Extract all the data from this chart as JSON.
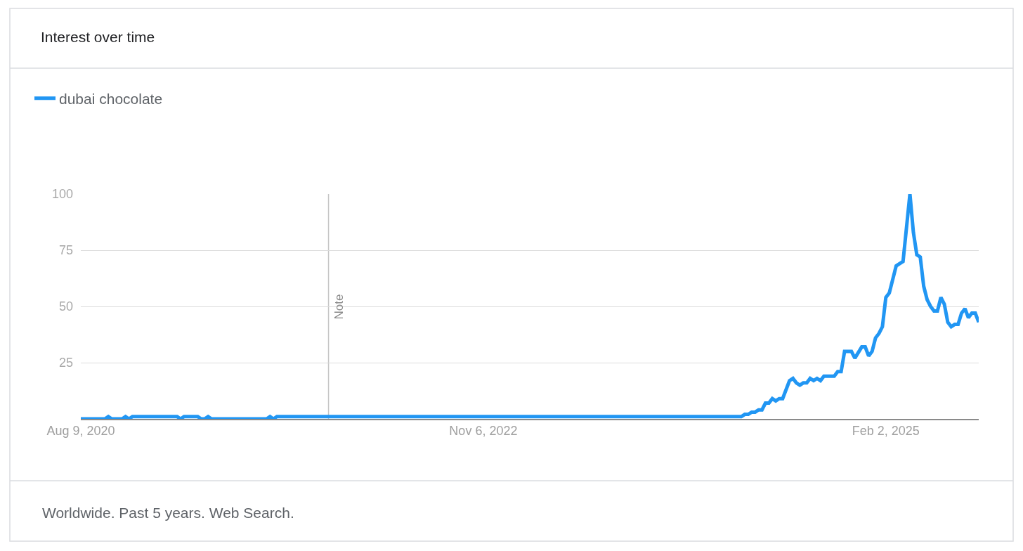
{
  "chart_data": {
    "type": "line",
    "title": "Interest over time",
    "annotations": [
      "Worldwide. Past 5 years. Web Search."
    ],
    "series": [
      {
        "name": "dubai chocolate",
        "color": "#2196f3",
        "x": [
          "2020-08-09",
          "2020-09-27",
          "2020-10-04",
          "2020-10-11",
          "2020-11-01",
          "2020-11-08",
          "2020-11-15",
          "2020-11-22",
          "2021-02-21",
          "2021-02-28",
          "2021-03-07",
          "2021-04-04",
          "2021-04-11",
          "2021-04-18",
          "2021-04-25",
          "2021-05-02",
          "2021-08-22",
          "2021-08-29",
          "2021-09-05",
          "2021-09-12",
          "2024-04-14",
          "2024-04-21",
          "2024-04-28",
          "2024-05-05",
          "2024-05-12",
          "2024-05-19",
          "2024-05-26",
          "2024-06-02",
          "2024-06-09",
          "2024-06-16",
          "2024-06-23",
          "2024-06-30",
          "2024-07-07",
          "2024-07-21",
          "2024-07-28",
          "2024-08-04",
          "2024-08-11",
          "2024-08-18",
          "2024-08-25",
          "2024-09-01",
          "2024-09-08",
          "2024-09-15",
          "2024-09-22",
          "2024-09-29",
          "2024-10-20",
          "2024-10-27",
          "2024-11-03",
          "2024-11-10",
          "2024-11-24",
          "2024-12-01",
          "2024-12-15",
          "2024-12-22",
          "2024-12-29",
          "2025-01-05",
          "2025-01-12",
          "2025-01-19",
          "2025-01-26",
          "2025-02-02",
          "2025-02-09",
          "2025-02-23",
          "2025-03-02",
          "2025-03-09",
          "2025-03-23",
          "2025-03-30",
          "2025-04-06",
          "2025-04-13",
          "2025-04-20",
          "2025-04-27",
          "2025-05-04",
          "2025-05-11",
          "2025-05-18",
          "2025-05-25",
          "2025-06-01",
          "2025-06-08",
          "2025-06-15",
          "2025-06-22",
          "2025-06-29",
          "2025-07-06",
          "2025-07-13",
          "2025-07-20",
          "2025-07-27",
          "2025-08-03",
          "2025-08-10"
        ],
        "values": [
          0,
          0,
          1,
          0,
          0,
          1,
          0,
          1,
          1,
          0,
          1,
          1,
          0,
          0,
          1,
          0,
          0,
          1,
          0,
          1,
          1,
          2,
          2,
          3,
          3,
          4,
          4,
          7,
          7,
          9,
          8,
          9,
          9,
          17,
          18,
          16,
          15,
          16,
          16,
          18,
          17,
          18,
          17,
          19,
          19,
          21,
          21,
          30,
          30,
          27,
          32,
          32,
          28,
          30,
          36,
          38,
          41,
          54,
          56,
          68,
          69,
          70,
          100,
          83,
          73,
          72,
          59,
          53,
          50,
          48,
          48,
          54,
          51,
          43,
          41,
          42,
          42,
          47,
          49,
          45,
          47,
          47,
          43
        ]
      }
    ],
    "xlim": [
      "2020-08-09",
      "2025-08-10"
    ],
    "xticks": [
      {
        "value": "2020-08-09",
        "label": "Aug 9, 2020"
      },
      {
        "value": "2022-11-06",
        "label": "Nov 6, 2022"
      },
      {
        "value": "2025-02-02",
        "label": "Feb 2, 2025"
      }
    ],
    "ylim": [
      0,
      100
    ],
    "yticks": [
      25,
      50,
      75,
      100
    ],
    "grid": "y",
    "legend": "top left",
    "line_style": "solid",
    "ref_lines": [
      {
        "axis": "x",
        "value": "2021-12-26",
        "label": "Note"
      }
    ]
  }
}
